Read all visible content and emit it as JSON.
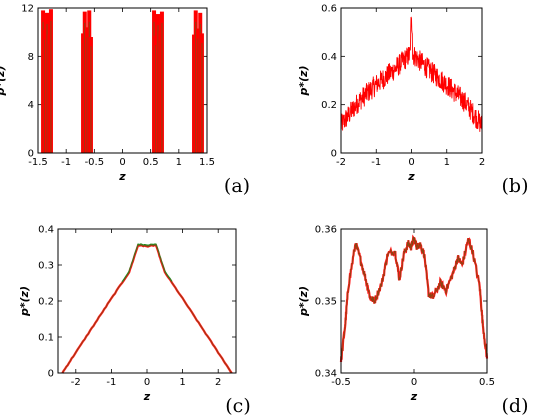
{
  "chart_data": [
    {
      "panel": "(a)",
      "type": "bar",
      "xlabel": "z",
      "ylabel": "p*(z)",
      "xlim": [
        -1.5,
        1.5
      ],
      "ylim": [
        0,
        12
      ],
      "xticks": [
        "-1.5",
        "-1",
        "-0.5",
        "0",
        "0.5",
        "1",
        "1.5"
      ],
      "yticks": [
        "0",
        "4",
        "8",
        "12"
      ],
      "colors": [
        "#ff0000",
        "#8b4513"
      ],
      "clusters": [
        {
          "center": -1.34,
          "spikes": [
            {
              "x": -1.41,
              "y": 11.8
            },
            {
              "x": -1.38,
              "y": 10.2
            },
            {
              "x": -1.34,
              "y": 11.6
            },
            {
              "x": -1.3,
              "y": 9.8
            },
            {
              "x": -1.27,
              "y": 11.9
            }
          ]
        },
        {
          "center": -0.63,
          "spikes": [
            {
              "x": -0.7,
              "y": 9.9
            },
            {
              "x": -0.67,
              "y": 11.7
            },
            {
              "x": -0.63,
              "y": 10.4
            },
            {
              "x": -0.59,
              "y": 11.8
            },
            {
              "x": -0.56,
              "y": 9.6
            }
          ]
        },
        {
          "center": 0.63,
          "spikes": [
            {
              "x": 0.56,
              "y": 11.8
            },
            {
              "x": 0.59,
              "y": 9.7
            },
            {
              "x": 0.63,
              "y": 11.5
            },
            {
              "x": 0.67,
              "y": 10.1
            },
            {
              "x": 0.7,
              "y": 11.7
            }
          ]
        },
        {
          "center": 1.34,
          "spikes": [
            {
              "x": 1.27,
              "y": 9.8
            },
            {
              "x": 1.3,
              "y": 11.8
            },
            {
              "x": 1.34,
              "y": 10.3
            },
            {
              "x": 1.38,
              "y": 11.6
            },
            {
              "x": 1.41,
              "y": 9.9
            }
          ]
        }
      ]
    },
    {
      "panel": "(b)",
      "type": "line",
      "xlabel": "z",
      "ylabel": "p*(z)",
      "xlim": [
        -2,
        2
      ],
      "ylim": [
        0,
        0.6
      ],
      "xticks": [
        "-2",
        "-1",
        "0",
        "1",
        "2"
      ],
      "yticks": [
        "0",
        "0.2",
        "0.4",
        "0.6"
      ],
      "colors": [
        "#ff0000"
      ],
      "envelope": {
        "x": [
          -2,
          -1.5,
          -1,
          -0.5,
          0,
          0.5,
          1,
          1.5,
          2
        ],
        "y": [
          0.1,
          0.2,
          0.27,
          0.33,
          0.4,
          0.33,
          0.27,
          0.2,
          0.1
        ]
      },
      "noise_amplitude": 0.09
    },
    {
      "panel": "(c)",
      "type": "line",
      "xlabel": "z",
      "ylabel": "p*(z)",
      "xlim": [
        -2.5,
        2.5
      ],
      "ylim": [
        0,
        0.4
      ],
      "xticks": [
        "-2",
        "-1",
        "0",
        "1",
        "2"
      ],
      "yticks": [
        "0",
        "0.1",
        "0.2",
        "0.3",
        "0.4"
      ],
      "colors": [
        "#ff0000",
        "#228b22",
        "#8b4513"
      ],
      "series": [
        {
          "x": [
            -2.38,
            -2,
            -1.5,
            -1,
            -0.5,
            -0.25,
            0,
            0.25,
            0.5,
            1,
            1.5,
            2,
            2.38
          ],
          "y": [
            0,
            0.057,
            0.132,
            0.207,
            0.28,
            0.355,
            0.352,
            0.355,
            0.28,
            0.207,
            0.132,
            0.057,
            0
          ]
        }
      ]
    },
    {
      "panel": "(d)",
      "type": "line",
      "xlabel": "z",
      "ylabel": "p*(z)",
      "xlim": [
        -0.5,
        0.5
      ],
      "ylim": [
        0.34,
        0.36
      ],
      "xticks": [
        "-0.5",
        "0",
        "0.5"
      ],
      "yticks": [
        "0.34",
        "0.35",
        "0.36"
      ],
      "colors": [
        "#ff0000",
        "#8b4513"
      ],
      "series": [
        {
          "x": [
            -0.5,
            -0.47,
            -0.45,
            -0.4,
            -0.37,
            -0.33,
            -0.3,
            -0.27,
            -0.22,
            -0.18,
            -0.13,
            -0.1,
            -0.07,
            -0.04,
            -0.02,
            0,
            0.02,
            0.04,
            0.07,
            0.1,
            0.13,
            0.18,
            0.22,
            0.27,
            0.3,
            0.33,
            0.37,
            0.4,
            0.45,
            0.47,
            0.5
          ],
          "y": [
            0.3415,
            0.347,
            0.352,
            0.358,
            0.356,
            0.353,
            0.3505,
            0.35,
            0.3525,
            0.3565,
            0.357,
            0.353,
            0.3565,
            0.358,
            0.3575,
            0.3587,
            0.3575,
            0.358,
            0.3565,
            0.351,
            0.3505,
            0.3525,
            0.3515,
            0.354,
            0.356,
            0.355,
            0.3585,
            0.357,
            0.352,
            0.347,
            0.342
          ]
        }
      ]
    }
  ]
}
